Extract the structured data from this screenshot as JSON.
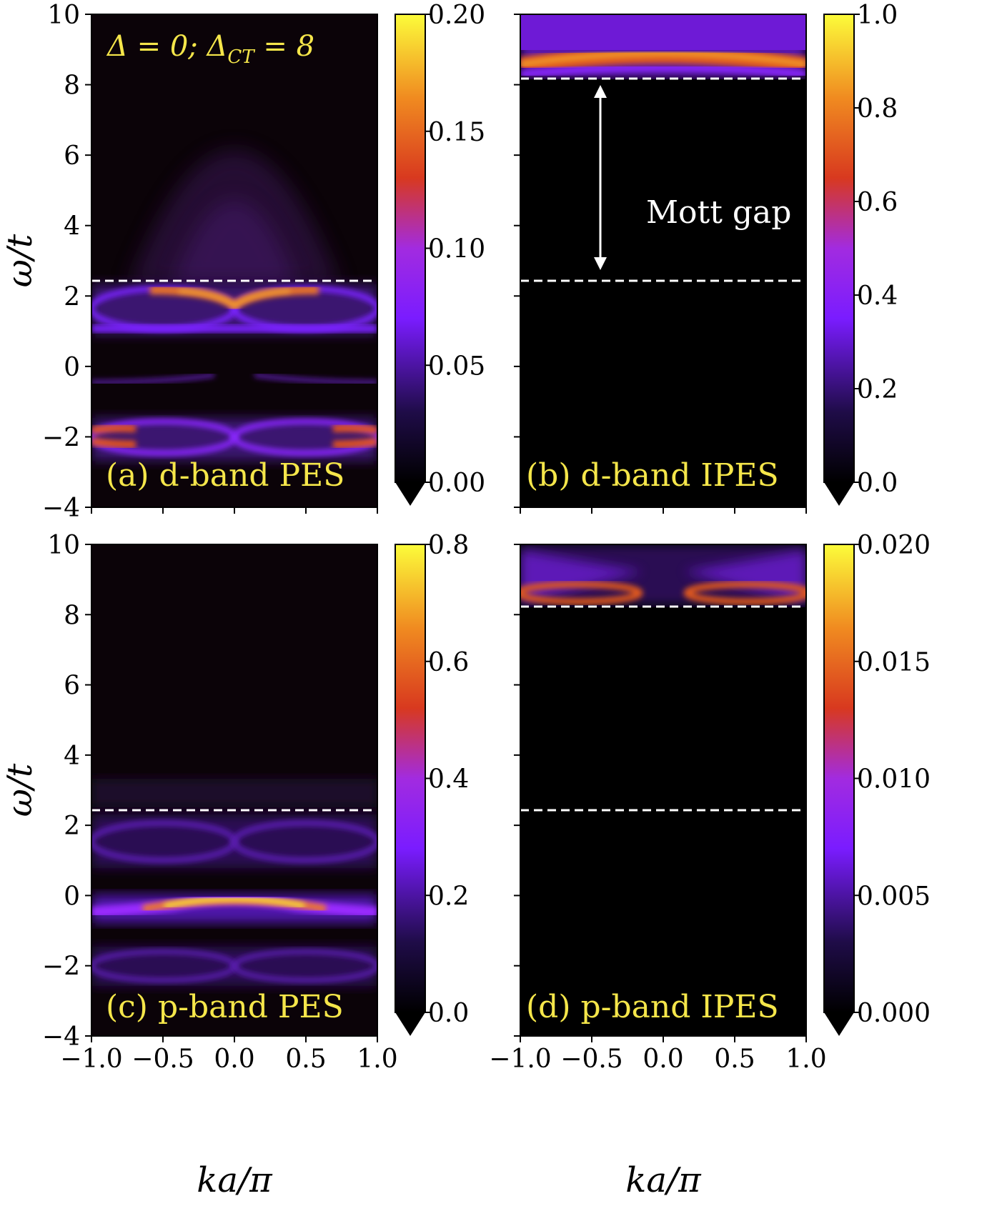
{
  "figure": {
    "annotation_text": "Δ = 0; Δ_CT = 8",
    "annotation_parts": {
      "delta": "Δ = 0; ",
      "delta_ct_symbol": "Δ",
      "delta_ct_sub": "CT",
      "delta_ct_value": " = 8"
    },
    "mott_gap_label": "Mott gap",
    "ylabel": "ω/t",
    "xlabel": "ka/π",
    "colors": {
      "accent_text": "#f5e64a",
      "white": "#ffffff",
      "dashed_line": "#ffffff"
    }
  },
  "chart_data": [
    {
      "id": "a",
      "type": "heatmap",
      "title": "(a) d-band PES",
      "xlim": [
        -1.0,
        1.0
      ],
      "ylim": [
        -4,
        10
      ],
      "xticks": [
        "−1.0",
        "−0.5",
        "0.0",
        "0.5",
        "1.0"
      ],
      "xtick_values": [
        -1.0,
        -0.5,
        0.0,
        0.5,
        1.0
      ],
      "yticks": [
        "−4",
        "−2",
        "0",
        "2",
        "4",
        "6",
        "8",
        "10"
      ],
      "ytick_values": [
        -4,
        -2,
        0,
        2,
        4,
        6,
        8,
        10
      ],
      "show_xtick_labels": false,
      "show_ytick_labels": true,
      "dashed_lines": [
        2.4
      ],
      "colorbar": {
        "ticks": [
          "0.00",
          "0.05",
          "0.10",
          "0.15",
          "0.20"
        ],
        "tick_values": [
          0.0,
          0.05,
          0.1,
          0.15,
          0.2
        ],
        "range": [
          0.0,
          0.2
        ]
      },
      "features": [
        {
          "kind": "upper-hubbard-loops",
          "center": 1.7,
          "strength": 0.9
        },
        {
          "kind": "lower-loops",
          "center": -2.1,
          "strength": 0.9
        },
        {
          "kind": "weak-band",
          "center": -0.55,
          "strength": 0.3
        },
        {
          "kind": "dome",
          "top": 7.0,
          "base": 2.4,
          "strength": 0.25
        }
      ]
    },
    {
      "id": "b",
      "type": "heatmap",
      "title": "(b) d-band IPES",
      "xlim": [
        -1.0,
        1.0
      ],
      "ylim": [
        -4,
        10
      ],
      "xticks": [
        "−1.0",
        "−0.5",
        "0.0",
        "0.5",
        "1.0"
      ],
      "xtick_values": [
        -1.0,
        -0.5,
        0.0,
        0.5,
        1.0
      ],
      "yticks": [
        "−4",
        "−2",
        "0",
        "2",
        "4",
        "6",
        "8",
        "10"
      ],
      "ytick_values": [
        -4,
        -2,
        0,
        2,
        4,
        6,
        8,
        10
      ],
      "show_xtick_labels": false,
      "show_ytick_labels": false,
      "dashed_lines": [
        8.2,
        2.4
      ],
      "arrow": {
        "from": 8.0,
        "to": 2.7,
        "x": -0.45
      },
      "colorbar": {
        "ticks": [
          "0.0",
          "0.2",
          "0.4",
          "0.6",
          "0.8",
          "1.0"
        ],
        "tick_values": [
          0.0,
          0.2,
          0.4,
          0.6,
          0.8,
          1.0
        ],
        "range": [
          0.0,
          1.0
        ]
      },
      "features": [
        {
          "kind": "top-band",
          "center": 8.6,
          "strength": 0.85
        }
      ]
    },
    {
      "id": "c",
      "type": "heatmap",
      "title": "(c) p-band PES",
      "xlim": [
        -1.0,
        1.0
      ],
      "ylim": [
        -4,
        10
      ],
      "xticks": [
        "−1.0",
        "−0.5",
        "0.0",
        "0.5",
        "1.0"
      ],
      "xtick_values": [
        -1.0,
        -0.5,
        0.0,
        0.5,
        1.0
      ],
      "yticks": [
        "−4",
        "−2",
        "0",
        "2",
        "4",
        "6",
        "8",
        "10"
      ],
      "ytick_values": [
        -4,
        -2,
        0,
        2,
        4,
        6,
        8,
        10
      ],
      "show_xtick_labels": true,
      "show_ytick_labels": true,
      "dashed_lines": [
        2.4
      ],
      "colorbar": {
        "ticks": [
          "0.0",
          "0.2",
          "0.4",
          "0.6",
          "0.8"
        ],
        "tick_values": [
          0.0,
          0.2,
          0.4,
          0.6,
          0.8
        ],
        "range": [
          0.0,
          0.8
        ]
      },
      "features": [
        {
          "kind": "bright-band",
          "center": -0.3,
          "strength": 1.0
        },
        {
          "kind": "upper-loops",
          "center": 1.6,
          "strength": 0.35
        },
        {
          "kind": "lower-loops",
          "center": -2.1,
          "strength": 0.35
        }
      ]
    },
    {
      "id": "d",
      "type": "heatmap",
      "title": "(d) p-band IPES",
      "xlim": [
        -1.0,
        1.0
      ],
      "ylim": [
        -4,
        10
      ],
      "xticks": [
        "−1.0",
        "−0.5",
        "0.0",
        "0.5",
        "1.0"
      ],
      "xtick_values": [
        -1.0,
        -0.5,
        0.0,
        0.5,
        1.0
      ],
      "yticks": [
        "−4",
        "−2",
        "0",
        "2",
        "4",
        "6",
        "8",
        "10"
      ],
      "ytick_values": [
        -4,
        -2,
        0,
        2,
        4,
        6,
        8,
        10
      ],
      "show_xtick_labels": true,
      "show_ytick_labels": false,
      "dashed_lines": [
        8.2,
        2.4
      ],
      "colorbar": {
        "ticks": [
          "0.000",
          "0.005",
          "0.010",
          "0.015",
          "0.020"
        ],
        "tick_values": [
          0.0,
          0.005,
          0.01,
          0.015,
          0.02
        ],
        "range": [
          0.0,
          0.02
        ]
      },
      "features": [
        {
          "kind": "top-wings",
          "center": 8.6,
          "strength": 0.85
        }
      ]
    }
  ]
}
